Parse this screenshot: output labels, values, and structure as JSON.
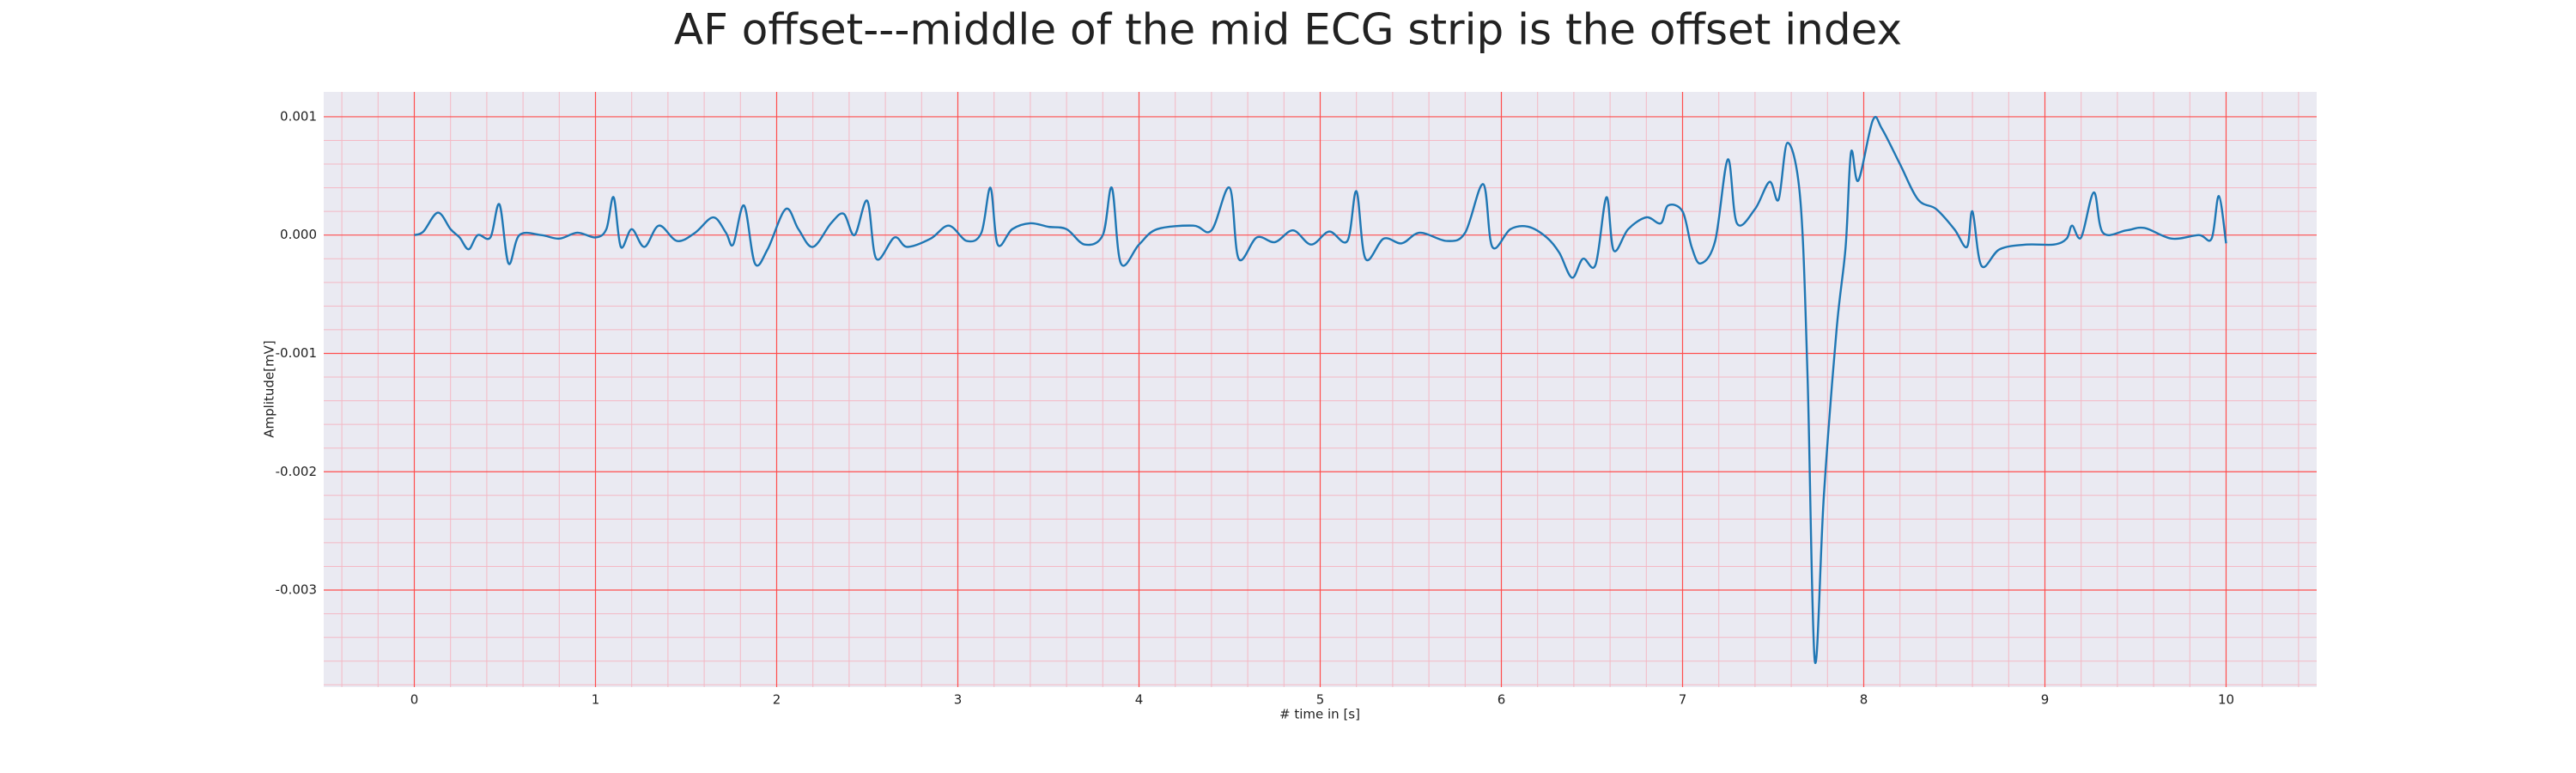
{
  "chart_data": {
    "type": "line",
    "title": "AF offset---middle of the mid ECG strip is the offset index",
    "xlabel": "# time in [s]",
    "ylabel": "Amplitude[mV]",
    "xlim": [
      -0.5,
      10.5
    ],
    "ylim": [
      -0.00382,
      0.00121
    ],
    "xticks": [
      0,
      1,
      2,
      3,
      4,
      5,
      6,
      7,
      8,
      9,
      10
    ],
    "yticks": [
      -0.003,
      -0.002,
      -0.001,
      {
        "value": 0,
        "label": "0.000"
      },
      0.001
    ],
    "xminorticks": [
      -0.4,
      -0.2,
      0.2,
      0.4,
      0.6,
      0.8,
      1.2,
      1.4,
      1.6,
      1.8,
      2.2,
      2.4,
      2.6,
      2.8,
      3.2,
      3.4,
      3.6,
      3.8,
      4.2,
      4.4,
      4.6,
      4.8,
      5.2,
      5.4,
      5.6,
      5.8,
      6.2,
      6.4,
      6.6,
      6.8,
      7.2,
      7.4,
      7.6,
      7.8,
      8.2,
      8.4,
      8.6,
      8.8,
      9.2,
      9.4,
      9.6,
      9.8,
      10.2,
      10.4
    ],
    "yminorticks": [
      0.0008,
      0.0006,
      0.0004,
      0.0002,
      -0.0002,
      -0.0004,
      -0.0006,
      -0.0008,
      -0.0012,
      -0.0014,
      -0.0016,
      -0.0018,
      -0.0022,
      -0.0024,
      -0.0026,
      -0.0028,
      -0.0032,
      -0.0034,
      -0.0036,
      -0.0038
    ],
    "grid": true,
    "grid_color": "#ff4d4d",
    "minor_grid_color": "#f4b8c4",
    "background": "#eaeaf2",
    "series": [
      {
        "color": "#1f77b4",
        "x": [
          0,
          0.05,
          0.13,
          0.2,
          0.25,
          0.3,
          0.35,
          0.42,
          0.47,
          0.52,
          0.58,
          0.7,
          0.8,
          0.9,
          1.0,
          1.06,
          1.1,
          1.14,
          1.2,
          1.27,
          1.35,
          1.45,
          1.55,
          1.65,
          1.72,
          1.76,
          1.82,
          1.88,
          1.95,
          2.05,
          2.12,
          2.2,
          2.3,
          2.37,
          2.43,
          2.5,
          2.55,
          2.65,
          2.72,
          2.85,
          2.95,
          3.05,
          3.13,
          3.18,
          3.22,
          3.3,
          3.4,
          3.5,
          3.6,
          3.7,
          3.8,
          3.85,
          3.9,
          4.0,
          4.1,
          4.3,
          4.4,
          4.5,
          4.55,
          4.65,
          4.75,
          4.85,
          4.95,
          5.05,
          5.15,
          5.2,
          5.25,
          5.35,
          5.45,
          5.55,
          5.7,
          5.8,
          5.9,
          5.95,
          6.05,
          6.15,
          6.25,
          6.32,
          6.39,
          6.45,
          6.52,
          6.58,
          6.62,
          6.7,
          6.8,
          6.88,
          6.92,
          7.0,
          7.05,
          7.1,
          7.18,
          7.25,
          7.3,
          7.4,
          7.48,
          7.53,
          7.58,
          7.65,
          7.69,
          7.73,
          7.78,
          7.85,
          7.9,
          7.93,
          7.97,
          8.05,
          8.1,
          8.2,
          8.3,
          8.4,
          8.5,
          8.57,
          8.6,
          8.65,
          8.75,
          8.9,
          9.05,
          9.12,
          9.15,
          9.2,
          9.27,
          9.32,
          9.45,
          9.55,
          9.7,
          9.85,
          9.92,
          9.96,
          10.0
        ],
        "values": [
          0,
          3e-05,
          0.00019,
          5e-05,
          -2e-05,
          -0.00012,
          0,
          -2e-05,
          0.00026,
          -0.00024,
          0,
          0,
          -3e-05,
          2e-05,
          -2e-05,
          5e-05,
          0.00032,
          -0.0001,
          5e-05,
          -0.0001,
          8e-05,
          -5e-05,
          2e-05,
          0.00015,
          2e-05,
          -8e-05,
          0.00025,
          -0.00024,
          -0.00012,
          0.00022,
          5e-05,
          -0.0001,
          0.0001,
          0.00018,
          0,
          0.00029,
          -0.0002,
          -2e-05,
          -0.0001,
          -3e-05,
          8e-05,
          -5e-05,
          2e-05,
          0.0004,
          -8e-05,
          5e-05,
          0.0001,
          7e-05,
          5e-05,
          -8e-05,
          0,
          0.0004,
          -0.00024,
          -8e-05,
          5e-05,
          8e-05,
          4e-05,
          0.0004,
          -0.0002,
          -2e-05,
          -6e-05,
          4e-05,
          -8e-05,
          3e-05,
          -5e-05,
          0.00037,
          -0.0002,
          -3e-05,
          -7e-05,
          2e-05,
          -5e-05,
          2e-05,
          0.00043,
          -0.0001,
          5e-05,
          7e-05,
          -2e-05,
          -0.00015,
          -0.00036,
          -0.0002,
          -0.00025,
          0.00032,
          -0.00013,
          5e-05,
          0.00015,
          0.0001,
          0.00025,
          0.0002,
          -0.0001,
          -0.00024,
          -5e-05,
          0.00064,
          0.0001,
          0.00022,
          0.00045,
          0.0003,
          0.00078,
          0.0003,
          -0.0012,
          -0.0036,
          -0.0022,
          -0.0008,
          -0.0001,
          0.0007,
          0.00046,
          0.00097,
          0.0009,
          0.0006,
          0.0003,
          0.00022,
          5e-05,
          -0.0001,
          0.0002,
          -0.00026,
          -0.00012,
          -8e-05,
          -8e-05,
          -3e-05,
          8e-05,
          -2e-05,
          0.00036,
          2e-05,
          4e-05,
          6e-05,
          -3e-05,
          0,
          -3e-05,
          0.00033,
          -7e-05
        ]
      }
    ]
  }
}
